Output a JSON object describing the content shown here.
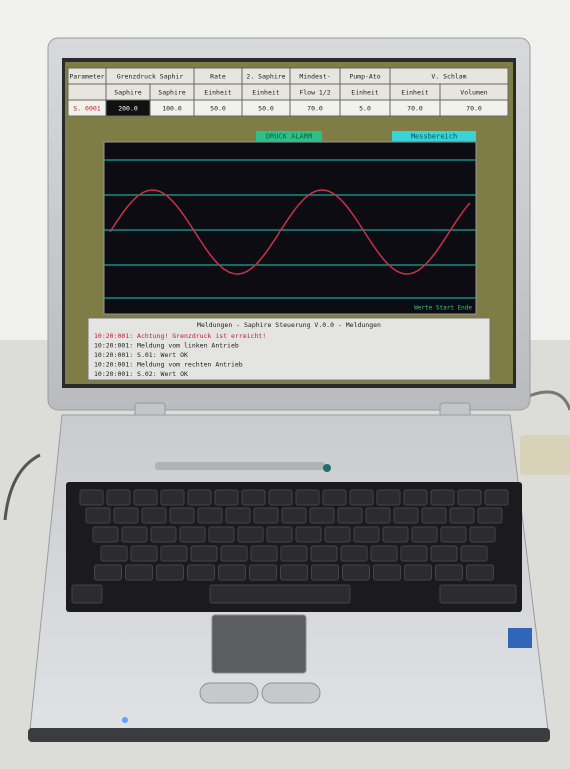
{
  "screen": {
    "table": {
      "header": [
        "Parameter",
        "Grenzdruck Saphir",
        "Rate",
        "2. Saphire",
        "Mindest-",
        "Pump-Ato",
        "V. Schlam"
      ],
      "subheader": [
        "Saphire",
        "Saphire",
        "Einheit",
        "Einheit",
        "Flow 1/2",
        "Einheit",
        "Einheit",
        "Volumen"
      ],
      "values": [
        "S. 0001",
        "200.0",
        "100.0",
        "50.0",
        "50.0",
        "70.0",
        "5.0",
        "70.0",
        "70.0"
      ]
    },
    "graph": {
      "alarm": "DRUCK ALARM",
      "range": "Messbereich",
      "footer": "Werte Start Ende"
    },
    "messages": {
      "title": "Meldungen - Saphire Steuerung V.0.0 - Meldungen",
      "lines": [
        "10:20:001: Achtung! Grenzdruck ist erreicht!",
        "10:20:001: Meldung vom linken Antrieb",
        "10:20:001: S.01: Wert OK",
        "10:20:001: Meldung vom rechten Antrieb",
        "10:20:001: S.02: Wert OK"
      ]
    }
  }
}
